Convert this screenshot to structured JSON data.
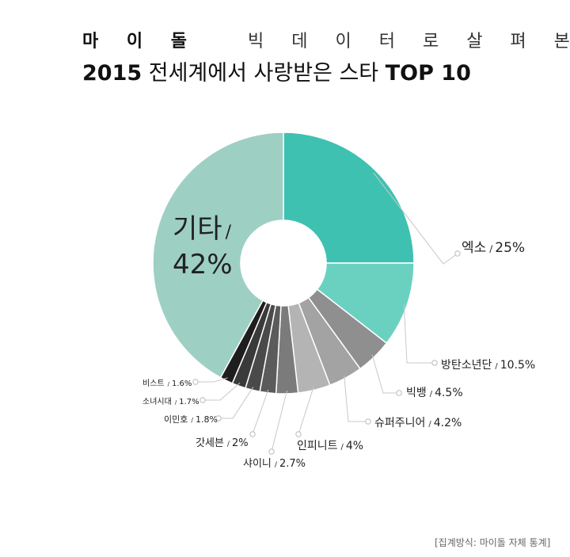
{
  "header": {
    "line1_prefix": "마 이 돌",
    "line1_rest": "빅 데 이 터 로   살 펴 본",
    "line2_year": "2015",
    "line2_mid": " 전세계에서 사랑받은 스타 ",
    "line2_suffix": "TOP 10"
  },
  "footnote": "[집계방식: 마이돌 자체 통계]",
  "colors": {
    "exo": "#3fc1b1",
    "bts": "#6ad1c1",
    "other": "#9ecfc3"
  },
  "chart_data": {
    "type": "pie",
    "donut": true,
    "slices": [
      {
        "name": "엑소",
        "value": 25,
        "label": "25%",
        "color": "#3fc1b1"
      },
      {
        "name": "방탄소년단",
        "value": 10.5,
        "label": "10.5%",
        "color": "#6ad1c1"
      },
      {
        "name": "빅뱅",
        "value": 4.5,
        "label": "4.5%",
        "color": "#8f8f8f"
      },
      {
        "name": "슈퍼주니어",
        "value": 4.2,
        "label": "4.2%",
        "color": "#a3a3a3"
      },
      {
        "name": "인피니트",
        "value": 4,
        "label": "4%",
        "color": "#b4b4b4"
      },
      {
        "name": "샤이니",
        "value": 2.7,
        "label": "2.7%",
        "color": "#7b7b7b"
      },
      {
        "name": "갓세븐",
        "value": 2,
        "label": "2%",
        "color": "#5b5b5b"
      },
      {
        "name": "이민호",
        "value": 1.8,
        "label": "1.8%",
        "color": "#4a4a4a"
      },
      {
        "name": "소녀시대",
        "value": 1.7,
        "label": "1.7%",
        "color": "#3a3a3a"
      },
      {
        "name": "비스트",
        "value": 1.6,
        "label": "1.6%",
        "color": "#1e1e1e"
      },
      {
        "name": "기타",
        "value": 42,
        "label": "42%",
        "color": "#9ecfc3"
      }
    ]
  }
}
